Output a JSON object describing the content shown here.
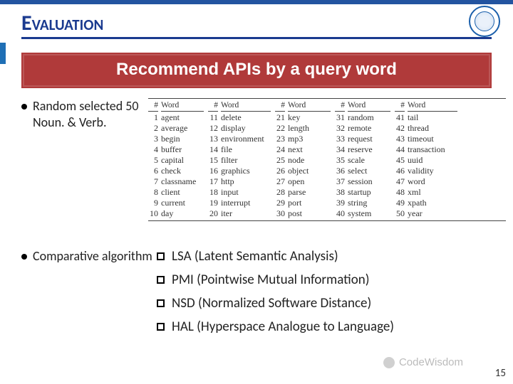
{
  "title": "Evaluation",
  "banner": "Recommend APIs by a query word",
  "bullet1": "Random selected 50 Noun. & Verb.",
  "bullet2": "Comparative algorithm",
  "word_table": {
    "header_num": "#",
    "header_word": "Word",
    "groups": [
      {
        "nums": [
          "1",
          "2",
          "3",
          "4",
          "5",
          "6",
          "7",
          "8",
          "9",
          "10"
        ],
        "words": [
          "agent",
          "average",
          "begin",
          "buffer",
          "capital",
          "check",
          "classname",
          "client",
          "current",
          "day"
        ]
      },
      {
        "nums": [
          "11",
          "12",
          "13",
          "14",
          "15",
          "16",
          "17",
          "18",
          "19",
          "20"
        ],
        "words": [
          "delete",
          "display",
          "environment",
          "file",
          "filter",
          "graphics",
          "http",
          "input",
          "interrupt",
          "iter"
        ]
      },
      {
        "nums": [
          "21",
          "22",
          "23",
          "24",
          "25",
          "26",
          "27",
          "28",
          "29",
          "30"
        ],
        "words": [
          "key",
          "length",
          "mp3",
          "next",
          "node",
          "object",
          "open",
          "parse",
          "port",
          "post"
        ]
      },
      {
        "nums": [
          "31",
          "32",
          "33",
          "34",
          "35",
          "36",
          "37",
          "38",
          "39",
          "40"
        ],
        "words": [
          "random",
          "remote",
          "request",
          "reserve",
          "scale",
          "select",
          "session",
          "startup",
          "string",
          "system"
        ]
      },
      {
        "nums": [
          "41",
          "42",
          "43",
          "44",
          "45",
          "46",
          "47",
          "48",
          "49",
          "50"
        ],
        "words": [
          "tail",
          "thread",
          "timeout",
          "transaction",
          "uuid",
          "validity",
          "word",
          "xml",
          "xpath",
          "year"
        ]
      }
    ]
  },
  "algorithms": [
    "LSA (Latent Semantic Analysis)",
    "PMI (Pointwise Mutual Information)",
    "NSD (Normalized Software Distance)",
    "HAL (Hyperspace Analogue to Language)"
  ],
  "page_number": "15",
  "watermark": "CodeWisdom"
}
